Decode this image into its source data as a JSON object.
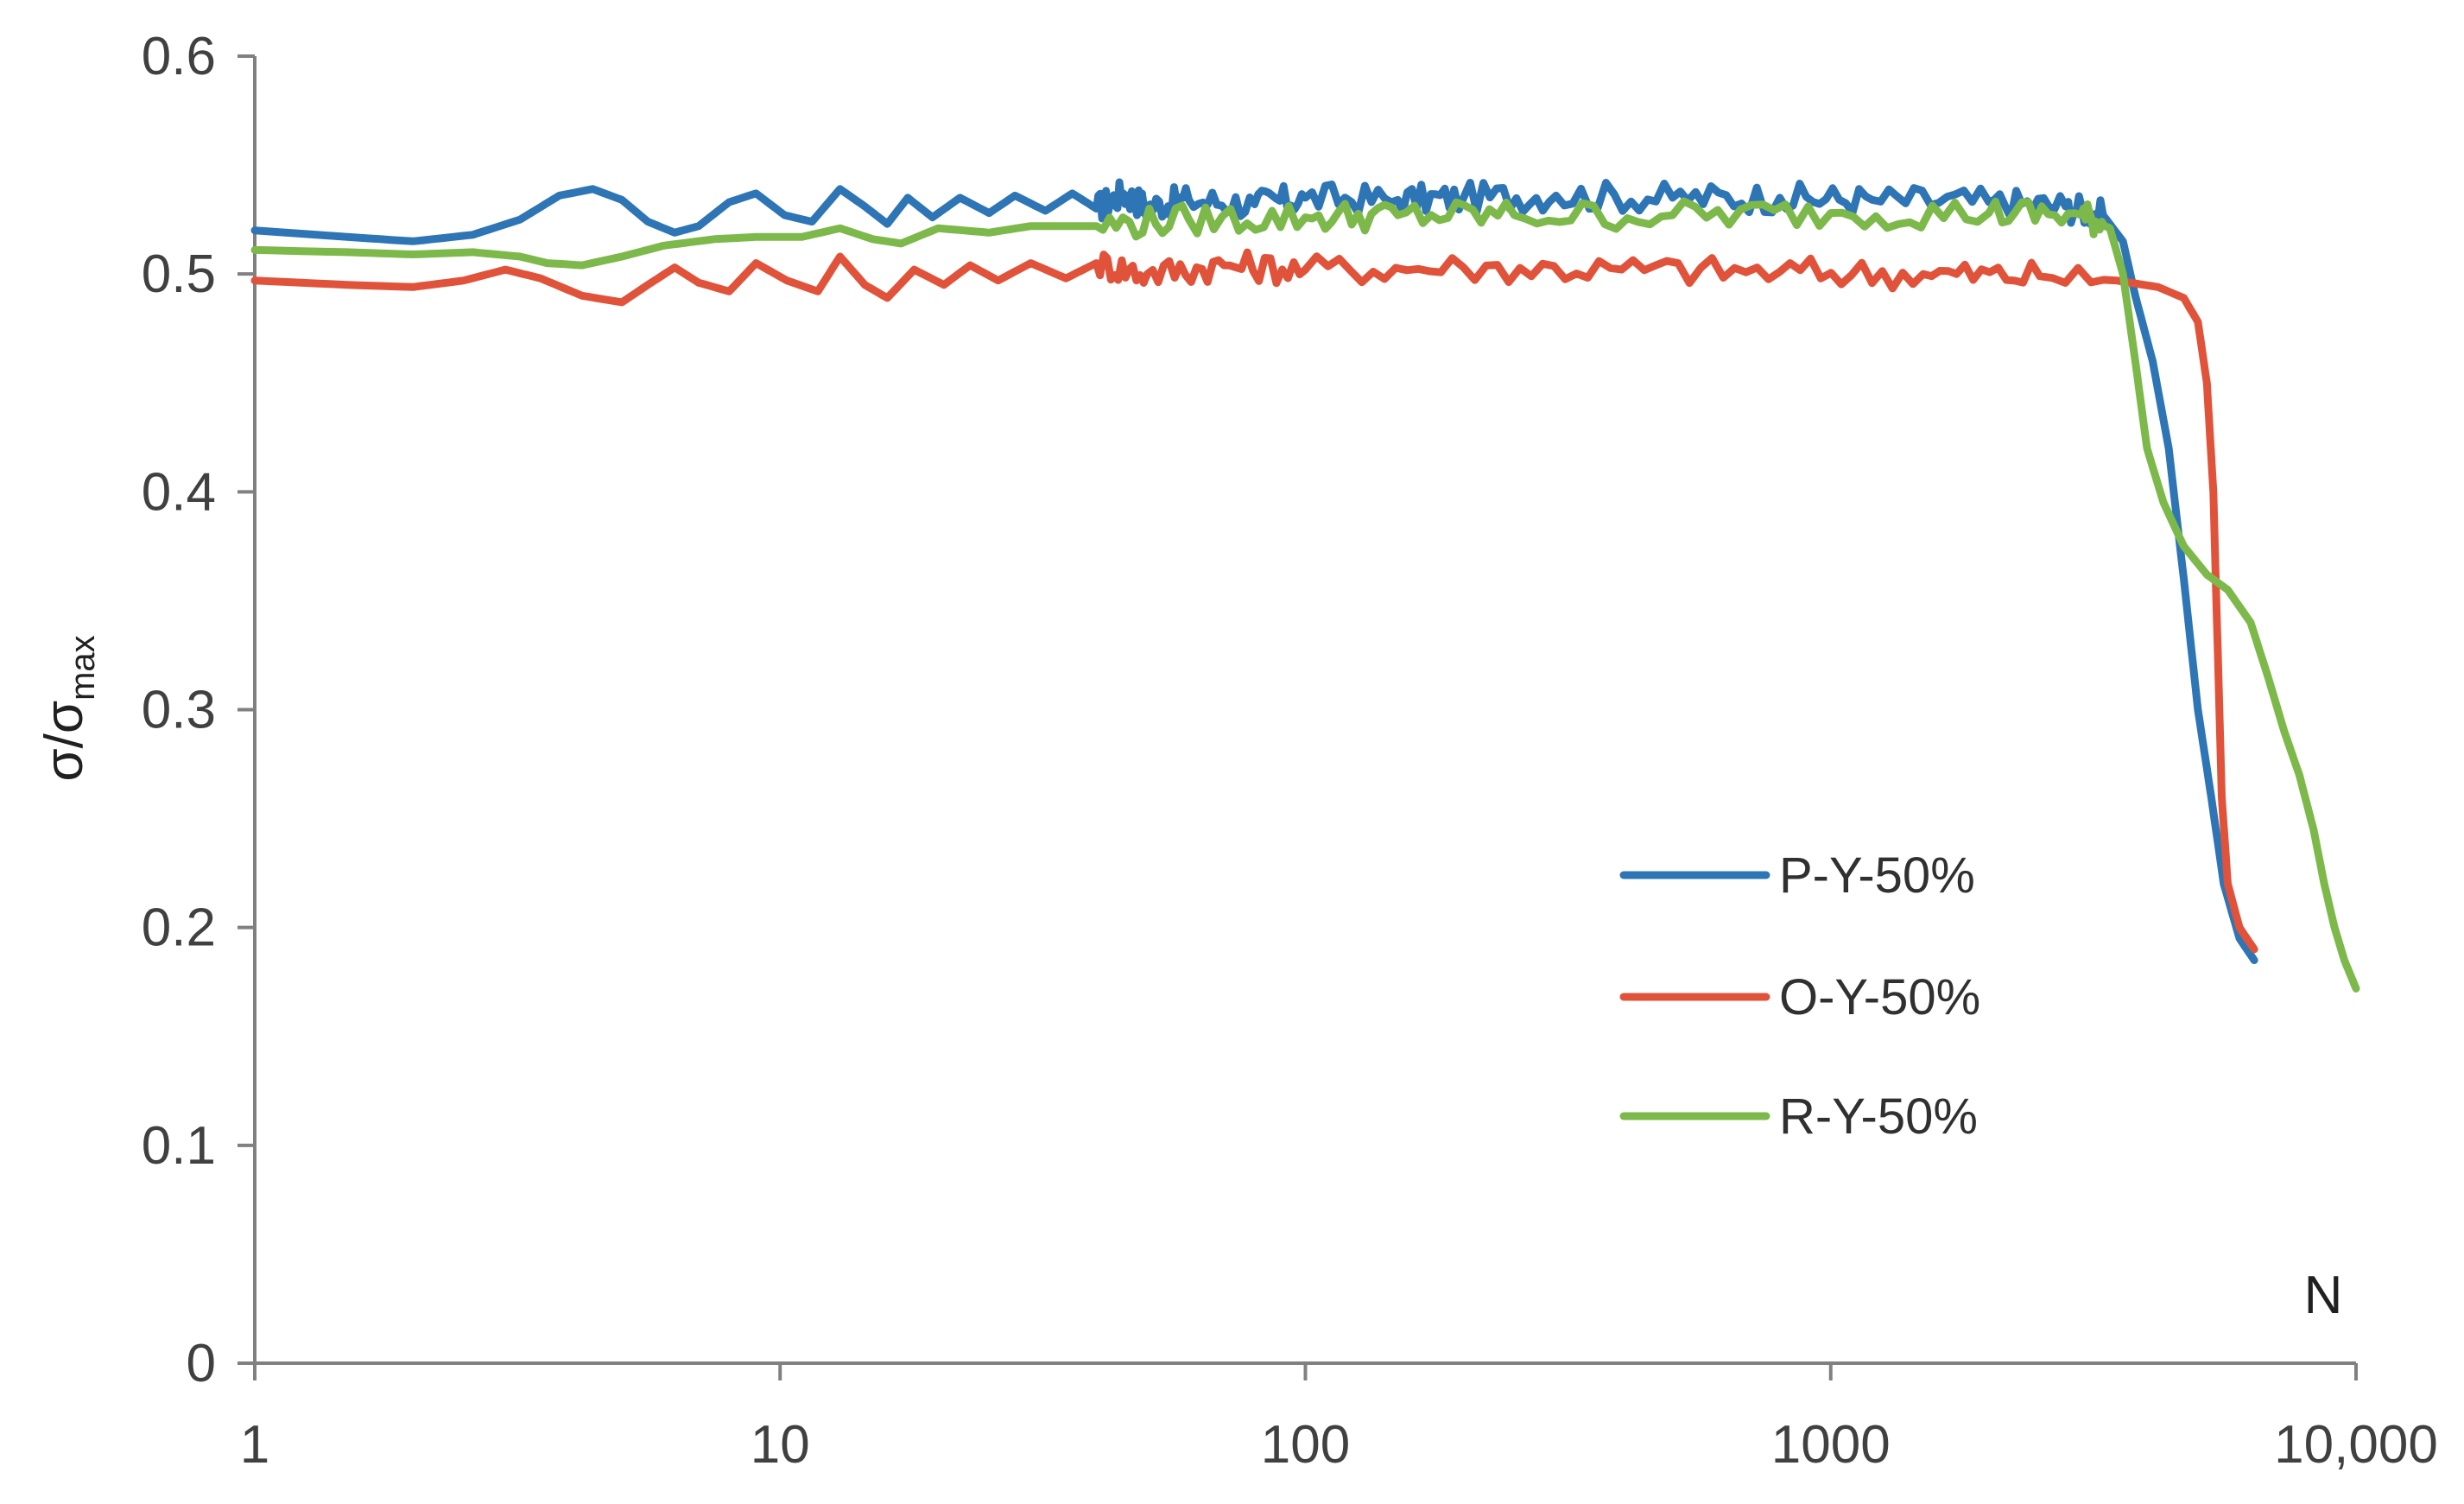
{
  "chart_data": {
    "type": "line",
    "title": "",
    "xlabel": "N",
    "ylabel": "σ/σmax",
    "ylabel_parts": {
      "main": "σ/σ",
      "subscript": "max"
    },
    "x_scale": "log",
    "xlim": [
      1,
      10000
    ],
    "ylim": [
      0,
      0.6
    ],
    "x_ticks": [
      {
        "value": 1,
        "label": "1"
      },
      {
        "value": 10,
        "label": "10"
      },
      {
        "value": 100,
        "label": "100"
      },
      {
        "value": 1000,
        "label": "1000"
      },
      {
        "value": 10000,
        "label": "10,000"
      }
    ],
    "y_ticks": [
      {
        "value": 0,
        "label": "0"
      },
      {
        "value": 0.1,
        "label": "0.1"
      },
      {
        "value": 0.2,
        "label": "0.2"
      },
      {
        "value": 0.3,
        "label": "0.3"
      },
      {
        "value": 0.4,
        "label": "0.4"
      },
      {
        "value": 0.5,
        "label": "0.5"
      },
      {
        "value": 0.6,
        "label": "0.6"
      }
    ],
    "grid": false,
    "legend_position": "lower-right",
    "series": [
      {
        "name": "P-Y-50%",
        "color": "#2E75B6",
        "points": [
          [
            1,
            0.52
          ],
          [
            1.5,
            0.517
          ],
          [
            2,
            0.515
          ],
          [
            2.6,
            0.518
          ],
          [
            3.2,
            0.525
          ],
          [
            3.8,
            0.536
          ],
          [
            4.4,
            0.539
          ],
          [
            5.0,
            0.534
          ],
          [
            5.6,
            0.524
          ],
          [
            6.3,
            0.519
          ],
          [
            7.0,
            0.522
          ],
          [
            8.0,
            0.533
          ],
          [
            9.0,
            0.537
          ],
          [
            10.2,
            0.527
          ],
          [
            11.5,
            0.524
          ],
          [
            13.0,
            0.539
          ],
          [
            14.5,
            0.531
          ],
          [
            16.0,
            0.523
          ],
          [
            17.5,
            0.535
          ],
          [
            19.5,
            0.526
          ],
          [
            22,
            0.535
          ],
          [
            25,
            0.528
          ],
          [
            28,
            0.536
          ],
          [
            32,
            0.529
          ],
          [
            36,
            0.537
          ],
          [
            40,
            0.53
          ],
          [
            45,
            0.537
          ],
          [
            50,
            0.531
          ],
          [
            60,
            0.534
          ],
          [
            80,
            0.532
          ],
          [
            100,
            0.535
          ],
          [
            150,
            0.534
          ],
          [
            200,
            0.535
          ],
          [
            300,
            0.536
          ],
          [
            500,
            0.535
          ],
          [
            800,
            0.535
          ],
          [
            1200,
            0.534
          ],
          [
            2000,
            0.533
          ],
          [
            2800,
            0.531
          ],
          [
            3300,
            0.527
          ],
          [
            3600,
            0.515
          ],
          [
            3800,
            0.49
          ],
          [
            4100,
            0.46
          ],
          [
            4400,
            0.42
          ],
          [
            4700,
            0.36
          ],
          [
            5000,
            0.3
          ],
          [
            5300,
            0.26
          ],
          [
            5600,
            0.22
          ],
          [
            6000,
            0.195
          ],
          [
            6400,
            0.185
          ]
        ]
      },
      {
        "name": "O-Y-50%",
        "color": "#E0533A",
        "points": [
          [
            1,
            0.497
          ],
          [
            1.5,
            0.495
          ],
          [
            2,
            0.494
          ],
          [
            2.5,
            0.497
          ],
          [
            3.0,
            0.502
          ],
          [
            3.5,
            0.498
          ],
          [
            4.2,
            0.49
          ],
          [
            5.0,
            0.487
          ],
          [
            5.6,
            0.495
          ],
          [
            6.3,
            0.503
          ],
          [
            7.0,
            0.496
          ],
          [
            8.0,
            0.492
          ],
          [
            9.0,
            0.505
          ],
          [
            10.3,
            0.497
          ],
          [
            11.8,
            0.492
          ],
          [
            13.0,
            0.508
          ],
          [
            14.5,
            0.495
          ],
          [
            16.0,
            0.489
          ],
          [
            18.0,
            0.502
          ],
          [
            20.5,
            0.495
          ],
          [
            23,
            0.504
          ],
          [
            26,
            0.497
          ],
          [
            30,
            0.505
          ],
          [
            35,
            0.498
          ],
          [
            40,
            0.505
          ],
          [
            50,
            0.5
          ],
          [
            70,
            0.504
          ],
          [
            100,
            0.502
          ],
          [
            200,
            0.503
          ],
          [
            400,
            0.502
          ],
          [
            800,
            0.501
          ],
          [
            1500,
            0.5
          ],
          [
            2500,
            0.499
          ],
          [
            3500,
            0.497
          ],
          [
            4200,
            0.494
          ],
          [
            4700,
            0.489
          ],
          [
            5000,
            0.478
          ],
          [
            5200,
            0.45
          ],
          [
            5350,
            0.4
          ],
          [
            5450,
            0.33
          ],
          [
            5550,
            0.26
          ],
          [
            5700,
            0.22
          ],
          [
            6000,
            0.2
          ],
          [
            6400,
            0.19
          ]
        ]
      },
      {
        "name": "R-Y-50%",
        "color": "#7DB94A",
        "points": [
          [
            1,
            0.511
          ],
          [
            1.5,
            0.51
          ],
          [
            2,
            0.509
          ],
          [
            2.6,
            0.51
          ],
          [
            3.2,
            0.508
          ],
          [
            3.6,
            0.505
          ],
          [
            4.2,
            0.504
          ],
          [
            5.0,
            0.508
          ],
          [
            6.0,
            0.513
          ],
          [
            7.5,
            0.516
          ],
          [
            9.0,
            0.517
          ],
          [
            11.0,
            0.517
          ],
          [
            13.0,
            0.521
          ],
          [
            15.0,
            0.516
          ],
          [
            17.0,
            0.514
          ],
          [
            20,
            0.521
          ],
          [
            25,
            0.519
          ],
          [
            30,
            0.522
          ],
          [
            40,
            0.522
          ],
          [
            60,
            0.525
          ],
          [
            100,
            0.526
          ],
          [
            150,
            0.527
          ],
          [
            250,
            0.527
          ],
          [
            500,
            0.527
          ],
          [
            1000,
            0.528
          ],
          [
            2000,
            0.528
          ],
          [
            3000,
            0.527
          ],
          [
            3400,
            0.521
          ],
          [
            3600,
            0.5
          ],
          [
            3800,
            0.46
          ],
          [
            4000,
            0.42
          ],
          [
            4300,
            0.395
          ],
          [
            4700,
            0.375
          ],
          [
            5200,
            0.362
          ],
          [
            5700,
            0.355
          ],
          [
            6300,
            0.34
          ],
          [
            6800,
            0.315
          ],
          [
            7300,
            0.29
          ],
          [
            7800,
            0.27
          ],
          [
            8300,
            0.245
          ],
          [
            8700,
            0.22
          ],
          [
            9100,
            0.2
          ],
          [
            9500,
            0.185
          ],
          [
            10000,
            0.172
          ]
        ]
      }
    ]
  }
}
